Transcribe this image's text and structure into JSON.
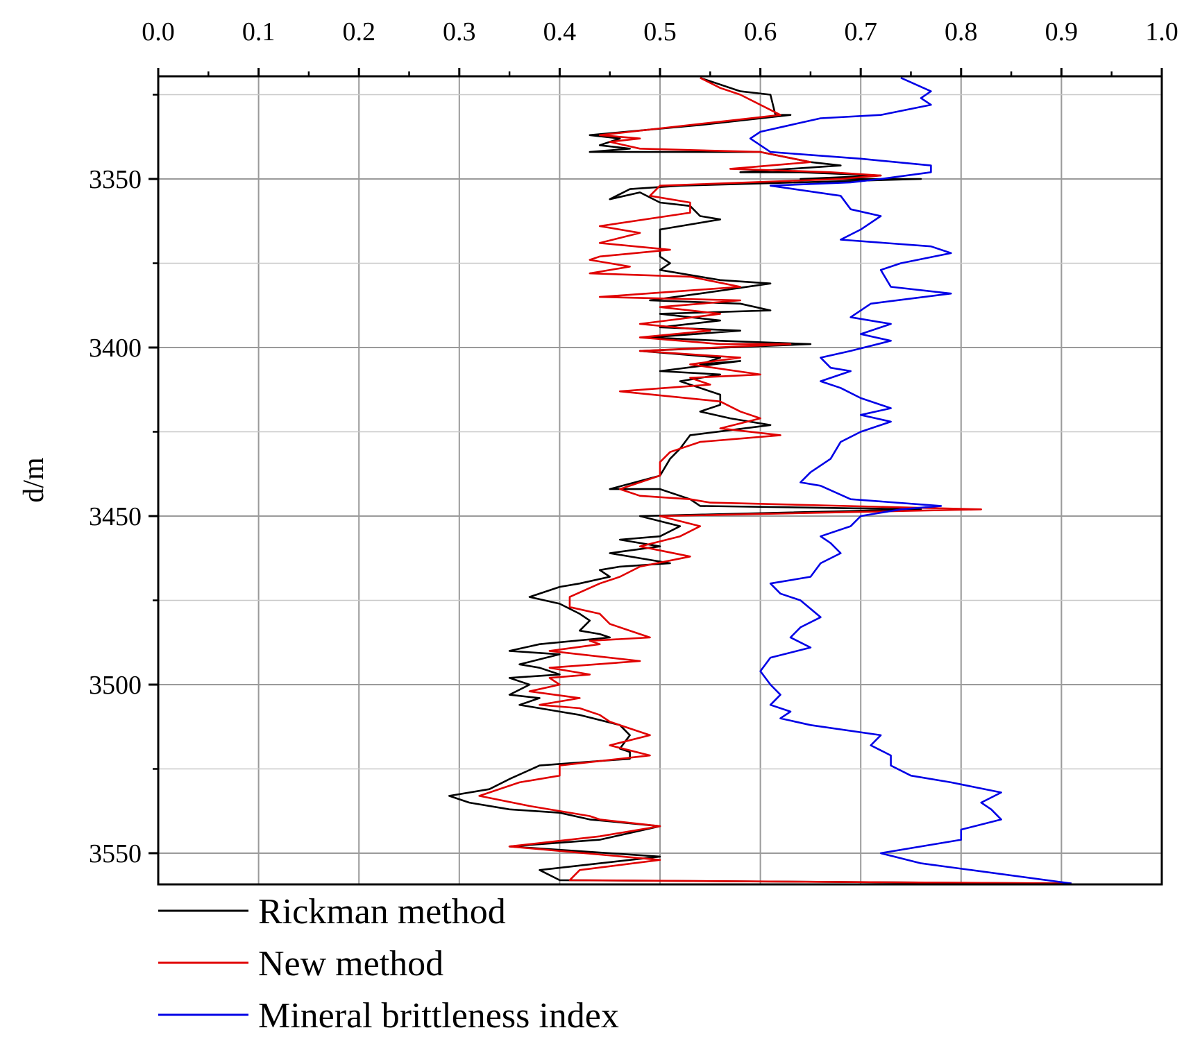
{
  "chart_data": {
    "type": "line",
    "orientation": "depth-vertical",
    "x_axis": {
      "position": "top",
      "range": [
        0.0,
        1.0
      ],
      "ticks": [
        0.0,
        0.1,
        0.2,
        0.3,
        0.4,
        0.5,
        0.6,
        0.7,
        0.8,
        0.9,
        1.0
      ],
      "tick_labels": [
        "0.0",
        "0.1",
        "0.2",
        "0.3",
        "0.4",
        "0.5",
        "0.6",
        "0.7",
        "0.8",
        "0.9",
        "1.0"
      ],
      "minor_step": 0.05,
      "label": ""
    },
    "y_axis": {
      "label": "d/m",
      "range": [
        3320,
        3560
      ],
      "inverted": true,
      "ticks": [
        3350,
        3400,
        3450,
        3500,
        3550
      ],
      "tick_labels": [
        "3350",
        "3400",
        "3450",
        "3500",
        "3550"
      ],
      "minor_ticks": [
        3325,
        3375,
        3425,
        3475,
        3525
      ]
    },
    "grid": true,
    "legend": {
      "position": "bottom-left"
    },
    "series": [
      {
        "name": "Rickman method",
        "color": "#000000",
        "points": [
          [
            0.54,
            3320
          ],
          [
            0.58,
            3324
          ],
          [
            0.61,
            3325
          ],
          [
            0.615,
            3331
          ],
          [
            0.63,
            3331
          ],
          [
            0.54,
            3334
          ],
          [
            0.43,
            3337
          ],
          [
            0.46,
            3338
          ],
          [
            0.44,
            3340
          ],
          [
            0.47,
            3341
          ],
          [
            0.43,
            3342
          ],
          [
            0.6,
            3342
          ],
          [
            0.65,
            3345
          ],
          [
            0.68,
            3346
          ],
          [
            0.58,
            3348
          ],
          [
            0.64,
            3348
          ],
          [
            0.72,
            3349
          ],
          [
            0.64,
            3350
          ],
          [
            0.76,
            3350
          ],
          [
            0.52,
            3352
          ],
          [
            0.47,
            3353
          ],
          [
            0.45,
            3356
          ],
          [
            0.48,
            3354
          ],
          [
            0.5,
            3357
          ],
          [
            0.53,
            3358
          ],
          [
            0.54,
            3361
          ],
          [
            0.56,
            3362
          ],
          [
            0.5,
            3365
          ],
          [
            0.5,
            3373
          ],
          [
            0.51,
            3375
          ],
          [
            0.5,
            3377
          ],
          [
            0.56,
            3380
          ],
          [
            0.61,
            3381
          ],
          [
            0.54,
            3384
          ],
          [
            0.49,
            3386
          ],
          [
            0.58,
            3387
          ],
          [
            0.61,
            3389
          ],
          [
            0.5,
            3390
          ],
          [
            0.56,
            3392
          ],
          [
            0.5,
            3394
          ],
          [
            0.58,
            3395
          ],
          [
            0.49,
            3397
          ],
          [
            0.56,
            3398
          ],
          [
            0.65,
            3399
          ],
          [
            0.48,
            3401
          ],
          [
            0.56,
            3403
          ],
          [
            0.54,
            3405
          ],
          [
            0.58,
            3404
          ],
          [
            0.5,
            3407
          ],
          [
            0.56,
            3408
          ],
          [
            0.52,
            3410
          ],
          [
            0.54,
            3412
          ],
          [
            0.56,
            3414
          ],
          [
            0.56,
            3417
          ],
          [
            0.54,
            3419
          ],
          [
            0.57,
            3421
          ],
          [
            0.61,
            3423
          ],
          [
            0.53,
            3426
          ],
          [
            0.52,
            3430
          ],
          [
            0.51,
            3433
          ],
          [
            0.5,
            3438
          ],
          [
            0.45,
            3442
          ],
          [
            0.5,
            3442
          ],
          [
            0.53,
            3445
          ],
          [
            0.54,
            3447
          ],
          [
            0.76,
            3448
          ],
          [
            0.48,
            3450
          ],
          [
            0.52,
            3453
          ],
          [
            0.5,
            3456
          ],
          [
            0.46,
            3457
          ],
          [
            0.5,
            3459
          ],
          [
            0.45,
            3461
          ],
          [
            0.51,
            3464
          ],
          [
            0.46,
            3465
          ],
          [
            0.44,
            3466
          ],
          [
            0.45,
            3468
          ],
          [
            0.42,
            3470
          ],
          [
            0.4,
            3471
          ],
          [
            0.37,
            3474
          ],
          [
            0.4,
            3476
          ],
          [
            0.42,
            3479
          ],
          [
            0.43,
            3481
          ],
          [
            0.42,
            3484
          ],
          [
            0.44,
            3485
          ],
          [
            0.45,
            3486
          ],
          [
            0.38,
            3488
          ],
          [
            0.35,
            3490
          ],
          [
            0.4,
            3491
          ],
          [
            0.36,
            3494
          ],
          [
            0.38,
            3495
          ],
          [
            0.4,
            3497
          ],
          [
            0.35,
            3498
          ],
          [
            0.37,
            3500
          ],
          [
            0.35,
            3503
          ],
          [
            0.38,
            3504
          ],
          [
            0.36,
            3506
          ],
          [
            0.38,
            3507
          ],
          [
            0.4,
            3508
          ],
          [
            0.42,
            3509
          ],
          [
            0.46,
            3512
          ],
          [
            0.47,
            3515
          ],
          [
            0.46,
            3519
          ],
          [
            0.47,
            3520
          ],
          [
            0.47,
            3522
          ],
          [
            0.38,
            3524
          ],
          [
            0.35,
            3528
          ],
          [
            0.33,
            3531
          ],
          [
            0.29,
            3533
          ],
          [
            0.31,
            3535
          ],
          [
            0.35,
            3537
          ],
          [
            0.4,
            3538
          ],
          [
            0.43,
            3540
          ],
          [
            0.5,
            3542
          ],
          [
            0.44,
            3546
          ],
          [
            0.35,
            3548
          ],
          [
            0.5,
            3551
          ],
          [
            0.38,
            3555
          ],
          [
            0.4,
            3558
          ],
          [
            0.91,
            3559
          ]
        ]
      },
      {
        "name": "New method",
        "color": "#e00000",
        "points": [
          [
            0.54,
            3320
          ],
          [
            0.56,
            3323
          ],
          [
            0.58,
            3325
          ],
          [
            0.62,
            3331
          ],
          [
            0.56,
            3333
          ],
          [
            0.47,
            3336
          ],
          [
            0.44,
            3337
          ],
          [
            0.48,
            3338
          ],
          [
            0.45,
            3339
          ],
          [
            0.48,
            3341
          ],
          [
            0.6,
            3342
          ],
          [
            0.65,
            3345
          ],
          [
            0.57,
            3347
          ],
          [
            0.67,
            3348
          ],
          [
            0.72,
            3349
          ],
          [
            0.68,
            3350
          ],
          [
            0.5,
            3352
          ],
          [
            0.49,
            3355
          ],
          [
            0.53,
            3357
          ],
          [
            0.53,
            3360
          ],
          [
            0.44,
            3364
          ],
          [
            0.48,
            3366
          ],
          [
            0.44,
            3369
          ],
          [
            0.51,
            3371
          ],
          [
            0.44,
            3373
          ],
          [
            0.43,
            3374
          ],
          [
            0.47,
            3376
          ],
          [
            0.43,
            3378
          ],
          [
            0.53,
            3379
          ],
          [
            0.58,
            3382
          ],
          [
            0.44,
            3385
          ],
          [
            0.58,
            3386
          ],
          [
            0.5,
            3388
          ],
          [
            0.56,
            3390
          ],
          [
            0.48,
            3393
          ],
          [
            0.55,
            3395
          ],
          [
            0.48,
            3397
          ],
          [
            0.56,
            3399
          ],
          [
            0.63,
            3399
          ],
          [
            0.48,
            3401
          ],
          [
            0.58,
            3403
          ],
          [
            0.53,
            3405
          ],
          [
            0.6,
            3408
          ],
          [
            0.53,
            3409
          ],
          [
            0.55,
            3411
          ],
          [
            0.46,
            3413
          ],
          [
            0.56,
            3416
          ],
          [
            0.58,
            3419
          ],
          [
            0.6,
            3421
          ],
          [
            0.56,
            3424
          ],
          [
            0.62,
            3426
          ],
          [
            0.54,
            3428
          ],
          [
            0.51,
            3431
          ],
          [
            0.5,
            3434
          ],
          [
            0.5,
            3438
          ],
          [
            0.46,
            3442
          ],
          [
            0.48,
            3444
          ],
          [
            0.53,
            3445
          ],
          [
            0.55,
            3446
          ],
          [
            0.82,
            3448
          ],
          [
            0.5,
            3450
          ],
          [
            0.54,
            3453
          ],
          [
            0.52,
            3456
          ],
          [
            0.48,
            3459
          ],
          [
            0.53,
            3462
          ],
          [
            0.48,
            3465
          ],
          [
            0.46,
            3468
          ],
          [
            0.44,
            3470
          ],
          [
            0.41,
            3474
          ],
          [
            0.41,
            3477
          ],
          [
            0.44,
            3479
          ],
          [
            0.45,
            3482
          ],
          [
            0.49,
            3486
          ],
          [
            0.43,
            3487
          ],
          [
            0.44,
            3488
          ],
          [
            0.39,
            3490
          ],
          [
            0.48,
            3493
          ],
          [
            0.39,
            3495
          ],
          [
            0.43,
            3497
          ],
          [
            0.39,
            3498
          ],
          [
            0.4,
            3500
          ],
          [
            0.37,
            3502
          ],
          [
            0.42,
            3504
          ],
          [
            0.38,
            3506
          ],
          [
            0.42,
            3507
          ],
          [
            0.44,
            3509
          ],
          [
            0.45,
            3511
          ],
          [
            0.49,
            3515
          ],
          [
            0.45,
            3518
          ],
          [
            0.49,
            3521
          ],
          [
            0.4,
            3524
          ],
          [
            0.4,
            3527
          ],
          [
            0.36,
            3529
          ],
          [
            0.32,
            3533
          ],
          [
            0.37,
            3536
          ],
          [
            0.43,
            3539
          ],
          [
            0.44,
            3540
          ],
          [
            0.5,
            3542
          ],
          [
            0.44,
            3545
          ],
          [
            0.35,
            3548
          ],
          [
            0.5,
            3552
          ],
          [
            0.42,
            3555
          ],
          [
            0.41,
            3558
          ],
          [
            0.91,
            3559
          ]
        ]
      },
      {
        "name": "Mineral brittleness index",
        "color": "#0000e6",
        "points": [
          [
            0.74,
            3320
          ],
          [
            0.77,
            3324
          ],
          [
            0.76,
            3326
          ],
          [
            0.77,
            3328
          ],
          [
            0.72,
            3331
          ],
          [
            0.66,
            3332
          ],
          [
            0.6,
            3336
          ],
          [
            0.59,
            3338
          ],
          [
            0.61,
            3342
          ],
          [
            0.7,
            3344
          ],
          [
            0.77,
            3346
          ],
          [
            0.77,
            3348
          ],
          [
            0.72,
            3350
          ],
          [
            0.69,
            3351
          ],
          [
            0.61,
            3352
          ],
          [
            0.68,
            3355
          ],
          [
            0.69,
            3359
          ],
          [
            0.72,
            3361
          ],
          [
            0.7,
            3365
          ],
          [
            0.68,
            3368
          ],
          [
            0.77,
            3370
          ],
          [
            0.79,
            3372
          ],
          [
            0.74,
            3375
          ],
          [
            0.72,
            3377
          ],
          [
            0.73,
            3382
          ],
          [
            0.79,
            3384
          ],
          [
            0.71,
            3387
          ],
          [
            0.69,
            3391
          ],
          [
            0.73,
            3393
          ],
          [
            0.7,
            3396
          ],
          [
            0.73,
            3398
          ],
          [
            0.69,
            3401
          ],
          [
            0.66,
            3403
          ],
          [
            0.67,
            3406
          ],
          [
            0.69,
            3407
          ],
          [
            0.66,
            3410
          ],
          [
            0.68,
            3412
          ],
          [
            0.7,
            3415
          ],
          [
            0.73,
            3418
          ],
          [
            0.7,
            3420
          ],
          [
            0.73,
            3422
          ],
          [
            0.7,
            3425
          ],
          [
            0.68,
            3428
          ],
          [
            0.67,
            3433
          ],
          [
            0.65,
            3437
          ],
          [
            0.64,
            3440
          ],
          [
            0.66,
            3441
          ],
          [
            0.69,
            3445
          ],
          [
            0.78,
            3447
          ],
          [
            0.74,
            3448
          ],
          [
            0.7,
            3450
          ],
          [
            0.69,
            3453
          ],
          [
            0.66,
            3456
          ],
          [
            0.67,
            3458
          ],
          [
            0.68,
            3461
          ],
          [
            0.66,
            3464
          ],
          [
            0.65,
            3468
          ],
          [
            0.61,
            3470
          ],
          [
            0.62,
            3473
          ],
          [
            0.64,
            3475
          ],
          [
            0.66,
            3480
          ],
          [
            0.64,
            3483
          ],
          [
            0.63,
            3486
          ],
          [
            0.65,
            3489
          ],
          [
            0.61,
            3492
          ],
          [
            0.6,
            3496
          ],
          [
            0.61,
            3500
          ],
          [
            0.62,
            3503
          ],
          [
            0.61,
            3506
          ],
          [
            0.63,
            3508
          ],
          [
            0.62,
            3510
          ],
          [
            0.65,
            3512
          ],
          [
            0.72,
            3515
          ],
          [
            0.71,
            3518
          ],
          [
            0.73,
            3521
          ],
          [
            0.73,
            3524
          ],
          [
            0.75,
            3527
          ],
          [
            0.79,
            3529
          ],
          [
            0.84,
            3532
          ],
          [
            0.82,
            3535
          ],
          [
            0.83,
            3537
          ],
          [
            0.84,
            3540
          ],
          [
            0.8,
            3543
          ],
          [
            0.8,
            3546
          ],
          [
            0.72,
            3550
          ],
          [
            0.76,
            3553
          ],
          [
            0.91,
            3559
          ]
        ]
      }
    ]
  }
}
